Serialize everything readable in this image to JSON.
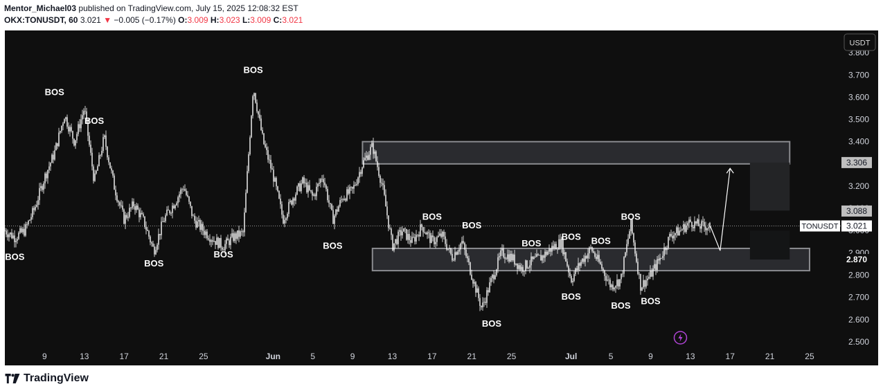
{
  "header": {
    "author": "Mentor_Michael03",
    "published_text": "published on TradingView.com, July 15, 2025 12:08:32 EST",
    "symbol": "OKX:TONUSDT, 60",
    "last": "3.021",
    "change_arrow": "▼",
    "change": "−0.005 (−0.17%)",
    "o_label": "O:",
    "o_value": "3.009",
    "h_label": "H:",
    "h_value": "3.023",
    "l_label": "L:",
    "l_value": "3.009",
    "c_label": "C:",
    "c_value": "3.021"
  },
  "footer": {
    "brand": "TradingView",
    "icon": "tradingview-logo-icon"
  },
  "colors": {
    "background": "#0f0f0f",
    "candle": "#ffffff",
    "zone_fill": "#2a2b2f",
    "zone_border": "#8a8b8f",
    "down": "#f23645",
    "flash": "#b044d6"
  },
  "chart_data": {
    "type": "candlestick",
    "currency": "USDT",
    "ylim": [
      2.45,
      3.9
    ],
    "y_ticks": [
      "3.800",
      "3.700",
      "3.600",
      "3.500",
      "3.400",
      "3.300",
      "3.200",
      "3.100",
      "3.000",
      "2.900",
      "2.800",
      "2.700",
      "2.600",
      "2.500"
    ],
    "x_ticks": [
      "9",
      "13",
      "17",
      "21",
      "25",
      "Jun",
      "5",
      "9",
      "13",
      "17",
      "21",
      "25",
      "Jul",
      "5",
      "9",
      "13",
      "17",
      "21",
      "25"
    ],
    "x_tick_dates": [
      "2025-05-09",
      "2025-05-13",
      "2025-05-17",
      "2025-05-21",
      "2025-05-25",
      "2025-06-01",
      "2025-06-05",
      "2025-06-09",
      "2025-06-13",
      "2025-06-17",
      "2025-06-21",
      "2025-06-25",
      "2025-07-01",
      "2025-07-05",
      "2025-07-09",
      "2025-07-13",
      "2025-07-17",
      "2025-07-21",
      "2025-07-25"
    ],
    "price_labels": [
      {
        "text": "3.306",
        "value": 3.306,
        "style": "gray"
      },
      {
        "text": "3.088",
        "value": 3.088,
        "style": "gray"
      },
      {
        "text": "3.021",
        "value": 3.021,
        "style": "white",
        "name": "TONUSDT"
      },
      {
        "text": "2.870",
        "value": 2.87,
        "style": "dark"
      }
    ],
    "last_price": 3.021,
    "series_name": "TONUSDT",
    "path": [
      [
        "2025-05-05",
        3.0
      ],
      [
        "2025-05-06",
        2.97
      ],
      [
        "2025-05-07",
        3.0
      ],
      [
        "2025-05-08",
        3.1
      ],
      [
        "2025-05-09",
        3.24
      ],
      [
        "2025-05-10",
        3.35
      ],
      [
        "2025-05-11",
        3.52
      ],
      [
        "2025-05-12",
        3.4
      ],
      [
        "2025-05-13",
        3.55
      ],
      [
        "2025-05-14",
        3.22
      ],
      [
        "2025-05-15",
        3.42
      ],
      [
        "2025-05-16",
        3.2
      ],
      [
        "2025-05-17",
        3.05
      ],
      [
        "2025-05-18",
        3.12
      ],
      [
        "2025-05-19",
        3.04
      ],
      [
        "2025-05-20",
        2.91
      ],
      [
        "2025-05-21",
        3.05
      ],
      [
        "2025-05-22",
        3.12
      ],
      [
        "2025-05-23",
        3.2
      ],
      [
        "2025-05-24",
        3.05
      ],
      [
        "2025-05-25",
        3.0
      ],
      [
        "2025-05-26",
        2.96
      ],
      [
        "2025-05-27",
        2.93
      ],
      [
        "2025-05-28",
        2.97
      ],
      [
        "2025-05-29",
        2.99
      ],
      [
        "2025-05-30",
        3.65
      ],
      [
        "2025-05-31",
        3.4
      ],
      [
        "2025-06-01",
        3.25
      ],
      [
        "2025-06-02",
        3.05
      ],
      [
        "2025-06-03",
        3.15
      ],
      [
        "2025-06-04",
        3.22
      ],
      [
        "2025-06-05",
        3.15
      ],
      [
        "2025-06-06",
        3.25
      ],
      [
        "2025-06-07",
        3.05
      ],
      [
        "2025-06-08",
        3.15
      ],
      [
        "2025-06-09",
        3.18
      ],
      [
        "2025-06-10",
        3.3
      ],
      [
        "2025-06-11",
        3.38
      ],
      [
        "2025-06-12",
        3.2
      ],
      [
        "2025-06-13",
        2.93
      ],
      [
        "2025-06-14",
        3.0
      ],
      [
        "2025-06-15",
        2.95
      ],
      [
        "2025-06-16",
        3.02
      ],
      [
        "2025-06-17",
        2.95
      ],
      [
        "2025-06-18",
        2.98
      ],
      [
        "2025-06-19",
        2.88
      ],
      [
        "2025-06-20",
        2.95
      ],
      [
        "2025-06-21",
        2.8
      ],
      [
        "2025-06-22",
        2.65
      ],
      [
        "2025-06-23",
        2.78
      ],
      [
        "2025-06-24",
        2.9
      ],
      [
        "2025-06-25",
        2.88
      ],
      [
        "2025-06-26",
        2.83
      ],
      [
        "2025-06-27",
        2.86
      ],
      [
        "2025-06-28",
        2.88
      ],
      [
        "2025-06-29",
        2.92
      ],
      [
        "2025-06-30",
        2.95
      ],
      [
        "2025-07-01",
        2.78
      ],
      [
        "2025-07-02",
        2.86
      ],
      [
        "2025-07-03",
        2.92
      ],
      [
        "2025-07-04",
        2.84
      ],
      [
        "2025-07-05",
        2.75
      ],
      [
        "2025-07-06",
        2.78
      ],
      [
        "2025-07-07",
        3.03
      ],
      [
        "2025-07-08",
        2.75
      ],
      [
        "2025-07-09",
        2.8
      ],
      [
        "2025-07-10",
        2.88
      ],
      [
        "2025-07-11",
        2.98
      ],
      [
        "2025-07-12",
        3.0
      ],
      [
        "2025-07-13",
        3.04
      ],
      [
        "2025-07-14",
        3.02
      ],
      [
        "2025-07-15",
        3.021
      ]
    ],
    "zones": [
      {
        "from": "2025-06-10",
        "to": "2025-07-23",
        "low": 3.3,
        "high": 3.4,
        "style": "outlined"
      },
      {
        "from": "2025-06-11",
        "to": "2025-07-25",
        "low": 2.82,
        "high": 2.92,
        "style": "outlined"
      },
      {
        "from": "2025-07-19",
        "to": "2025-07-23",
        "low": 3.09,
        "high": 3.306,
        "style": "shaded"
      },
      {
        "from": "2025-07-19",
        "to": "2025-07-23",
        "low": 2.87,
        "high": 3.0,
        "style": "shaded-dark"
      }
    ],
    "projection": [
      [
        "2025-07-15",
        3.021
      ],
      [
        "2025-07-16",
        2.91
      ],
      [
        "2025-07-17",
        3.28
      ]
    ],
    "annotations": [
      {
        "text": "BOS",
        "date": "2025-05-06",
        "price": 2.9,
        "pos": "below"
      },
      {
        "text": "BOS",
        "date": "2025-05-10",
        "price": 3.6,
        "pos": "above"
      },
      {
        "text": "BOS",
        "date": "2025-05-14",
        "price": 3.47,
        "pos": "above"
      },
      {
        "text": "BOS",
        "date": "2025-05-20",
        "price": 2.87,
        "pos": "below"
      },
      {
        "text": "BOS",
        "date": "2025-05-27",
        "price": 2.91,
        "pos": "below"
      },
      {
        "text": "BOS",
        "date": "2025-05-30",
        "price": 3.7,
        "pos": "above"
      },
      {
        "text": "BOS",
        "date": "2025-06-07",
        "price": 2.95,
        "pos": "below"
      },
      {
        "text": "BOS",
        "date": "2025-06-17",
        "price": 3.04,
        "pos": "above"
      },
      {
        "text": "BOS",
        "date": "2025-06-21",
        "price": 3.0,
        "pos": "above"
      },
      {
        "text": "BOS",
        "date": "2025-06-23",
        "price": 2.6,
        "pos": "below"
      },
      {
        "text": "BOS",
        "date": "2025-06-27",
        "price": 2.92,
        "pos": "above"
      },
      {
        "text": "BOS",
        "date": "2025-07-01",
        "price": 2.95,
        "pos": "above"
      },
      {
        "text": "BOS",
        "date": "2025-07-01",
        "price": 2.72,
        "pos": "below"
      },
      {
        "text": "BOS",
        "date": "2025-07-04",
        "price": 2.93,
        "pos": "above"
      },
      {
        "text": "BOS",
        "date": "2025-07-06",
        "price": 2.68,
        "pos": "below"
      },
      {
        "text": "BOS",
        "date": "2025-07-07",
        "price": 3.04,
        "pos": "above"
      },
      {
        "text": "BOS",
        "date": "2025-07-09",
        "price": 2.7,
        "pos": "below"
      }
    ],
    "flash_icon_date": "2025-07-12"
  }
}
